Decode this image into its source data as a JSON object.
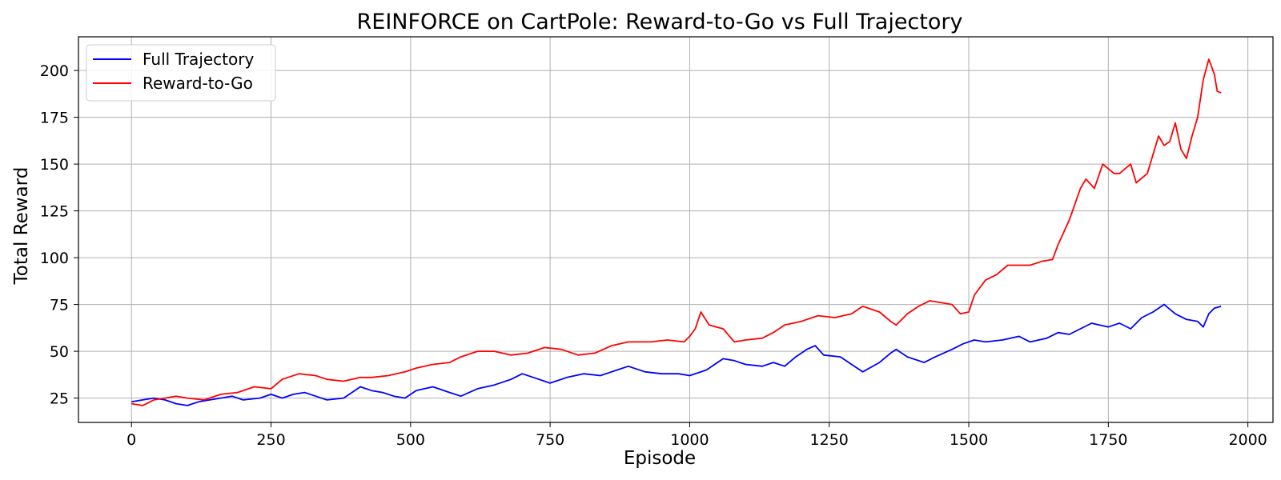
{
  "chart_data": {
    "type": "line",
    "title": "REINFORCE on CartPole: Reward-to-Go vs Full Trajectory",
    "xlabel": "Episode",
    "ylabel": "Total Reward",
    "xlim": [
      -95,
      2045
    ],
    "ylim": [
      12,
      218
    ],
    "x_ticks": [
      0,
      250,
      500,
      750,
      1000,
      1250,
      1500,
      1750,
      2000
    ],
    "y_ticks": [
      25,
      50,
      75,
      100,
      125,
      150,
      175,
      200
    ],
    "grid": true,
    "legend_position": "top-left",
    "series": [
      {
        "name": "Full Trajectory",
        "color": "#0000ff",
        "points": [
          [
            0,
            23
          ],
          [
            20,
            24
          ],
          [
            40,
            25
          ],
          [
            60,
            24
          ],
          [
            80,
            22
          ],
          [
            100,
            21
          ],
          [
            120,
            23
          ],
          [
            140,
            24
          ],
          [
            160,
            25
          ],
          [
            180,
            26
          ],
          [
            200,
            24
          ],
          [
            230,
            25
          ],
          [
            250,
            27
          ],
          [
            270,
            25
          ],
          [
            290,
            27
          ],
          [
            310,
            28
          ],
          [
            330,
            26
          ],
          [
            350,
            24
          ],
          [
            380,
            25
          ],
          [
            410,
            31
          ],
          [
            430,
            29
          ],
          [
            450,
            28
          ],
          [
            470,
            26
          ],
          [
            490,
            25
          ],
          [
            510,
            29
          ],
          [
            540,
            31
          ],
          [
            570,
            28
          ],
          [
            590,
            26
          ],
          [
            620,
            30
          ],
          [
            650,
            32
          ],
          [
            680,
            35
          ],
          [
            700,
            38
          ],
          [
            720,
            36
          ],
          [
            750,
            33
          ],
          [
            780,
            36
          ],
          [
            810,
            38
          ],
          [
            840,
            37
          ],
          [
            870,
            40
          ],
          [
            890,
            42
          ],
          [
            920,
            39
          ],
          [
            950,
            38
          ],
          [
            980,
            38
          ],
          [
            1000,
            37
          ],
          [
            1030,
            40
          ],
          [
            1060,
            46
          ],
          [
            1080,
            45
          ],
          [
            1100,
            43
          ],
          [
            1130,
            42
          ],
          [
            1150,
            44
          ],
          [
            1170,
            42
          ],
          [
            1190,
            47
          ],
          [
            1210,
            51
          ],
          [
            1225,
            53
          ],
          [
            1240,
            48
          ],
          [
            1270,
            47
          ],
          [
            1290,
            43
          ],
          [
            1310,
            39
          ],
          [
            1340,
            44
          ],
          [
            1360,
            49
          ],
          [
            1370,
            51
          ],
          [
            1390,
            47
          ],
          [
            1420,
            44
          ],
          [
            1440,
            47
          ],
          [
            1470,
            51
          ],
          [
            1490,
            54
          ],
          [
            1510,
            56
          ],
          [
            1530,
            55
          ],
          [
            1560,
            56
          ],
          [
            1590,
            58
          ],
          [
            1610,
            55
          ],
          [
            1640,
            57
          ],
          [
            1660,
            60
          ],
          [
            1680,
            59
          ],
          [
            1700,
            62
          ],
          [
            1720,
            65
          ],
          [
            1750,
            63
          ],
          [
            1770,
            65
          ],
          [
            1790,
            62
          ],
          [
            1810,
            68
          ],
          [
            1830,
            71
          ],
          [
            1850,
            75
          ],
          [
            1870,
            70
          ],
          [
            1890,
            67
          ],
          [
            1910,
            66
          ],
          [
            1920,
            63
          ],
          [
            1930,
            70
          ],
          [
            1940,
            73
          ],
          [
            1952,
            74
          ]
        ]
      },
      {
        "name": "Reward-to-Go",
        "color": "#ff0000",
        "points": [
          [
            0,
            22
          ],
          [
            20,
            21
          ],
          [
            40,
            24
          ],
          [
            60,
            25
          ],
          [
            80,
            26
          ],
          [
            100,
            25
          ],
          [
            130,
            24
          ],
          [
            160,
            27
          ],
          [
            190,
            28
          ],
          [
            220,
            31
          ],
          [
            250,
            30
          ],
          [
            270,
            35
          ],
          [
            300,
            38
          ],
          [
            330,
            37
          ],
          [
            350,
            35
          ],
          [
            380,
            34
          ],
          [
            410,
            36
          ],
          [
            430,
            36
          ],
          [
            460,
            37
          ],
          [
            490,
            39
          ],
          [
            510,
            41
          ],
          [
            540,
            43
          ],
          [
            570,
            44
          ],
          [
            590,
            47
          ],
          [
            620,
            50
          ],
          [
            650,
            50
          ],
          [
            680,
            48
          ],
          [
            710,
            49
          ],
          [
            740,
            52
          ],
          [
            770,
            51
          ],
          [
            800,
            48
          ],
          [
            830,
            49
          ],
          [
            860,
            53
          ],
          [
            890,
            55
          ],
          [
            930,
            55
          ],
          [
            960,
            56
          ],
          [
            990,
            55
          ],
          [
            1000,
            58
          ],
          [
            1010,
            62
          ],
          [
            1020,
            71
          ],
          [
            1035,
            64
          ],
          [
            1060,
            62
          ],
          [
            1080,
            55
          ],
          [
            1100,
            56
          ],
          [
            1130,
            57
          ],
          [
            1150,
            60
          ],
          [
            1170,
            64
          ],
          [
            1200,
            66
          ],
          [
            1230,
            69
          ],
          [
            1260,
            68
          ],
          [
            1290,
            70
          ],
          [
            1310,
            74
          ],
          [
            1340,
            71
          ],
          [
            1360,
            66
          ],
          [
            1370,
            64
          ],
          [
            1390,
            70
          ],
          [
            1410,
            74
          ],
          [
            1430,
            77
          ],
          [
            1450,
            76
          ],
          [
            1470,
            75
          ],
          [
            1485,
            70
          ],
          [
            1500,
            71
          ],
          [
            1510,
            80
          ],
          [
            1530,
            88
          ],
          [
            1550,
            91
          ],
          [
            1570,
            96
          ],
          [
            1590,
            96
          ],
          [
            1610,
            96
          ],
          [
            1630,
            98
          ],
          [
            1650,
            99
          ],
          [
            1660,
            107
          ],
          [
            1680,
            120
          ],
          [
            1700,
            137
          ],
          [
            1710,
            142
          ],
          [
            1725,
            137
          ],
          [
            1740,
            150
          ],
          [
            1760,
            145
          ],
          [
            1770,
            145
          ],
          [
            1790,
            150
          ],
          [
            1800,
            140
          ],
          [
            1820,
            145
          ],
          [
            1840,
            165
          ],
          [
            1850,
            160
          ],
          [
            1860,
            162
          ],
          [
            1870,
            172
          ],
          [
            1880,
            158
          ],
          [
            1890,
            153
          ],
          [
            1900,
            165
          ],
          [
            1910,
            175
          ],
          [
            1920,
            195
          ],
          [
            1930,
            206
          ],
          [
            1940,
            198
          ],
          [
            1945,
            189
          ],
          [
            1952,
            188
          ]
        ]
      }
    ]
  }
}
